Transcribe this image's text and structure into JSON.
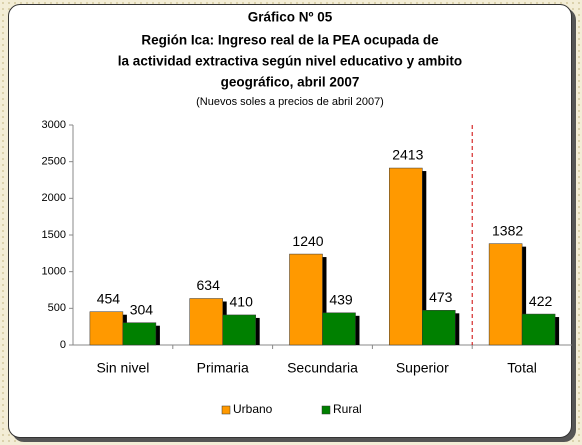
{
  "chart_data": {
    "type": "bar",
    "title": [
      "Gráfico Nº 05",
      "Región Ica: Ingreso real de la PEA ocupada de",
      "la actividad extractiva según nivel educativo y  ambito",
      "geográfico, abril 2007"
    ],
    "subtitle": "(Nuevos soles a precios de abril 2007)",
    "categories": [
      "Sin nivel",
      "Primaria",
      "Secundaria",
      "Superior",
      "Total"
    ],
    "series": [
      {
        "name": "Urbano",
        "color": "#ff9900",
        "values": [
          454,
          634,
          1240,
          2413,
          1382
        ]
      },
      {
        "name": "Rural",
        "color": "#008000",
        "values": [
          304,
          410,
          439,
          473,
          422
        ]
      }
    ],
    "ylim": [
      0,
      3000
    ],
    "yticks": [
      0,
      500,
      1000,
      1500,
      2000,
      2500,
      3000
    ],
    "grid": false,
    "legend": "bottom"
  }
}
